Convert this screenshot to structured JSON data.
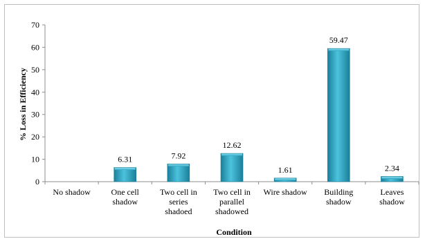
{
  "chart_data": {
    "type": "bar",
    "categories": [
      [
        "No shadow"
      ],
      [
        "One cell",
        "shadow"
      ],
      [
        "Two cell in",
        "series",
        "shadoed"
      ],
      [
        "Two cell in",
        "parallel",
        "shadowed"
      ],
      [
        "Wire shadow"
      ],
      [
        "Building",
        "shadow"
      ],
      [
        "Leaves",
        "shadow"
      ]
    ],
    "values": [
      0,
      6.31,
      7.92,
      12.62,
      1.61,
      59.47,
      2.34
    ],
    "data_labels": [
      "",
      "6.31",
      "7.92",
      "12.62",
      "1.61",
      "59.47",
      "2.34"
    ],
    "title": "",
    "xlabel": "Condition",
    "ylabel": "% Loss in Efficiency",
    "ylim": [
      0,
      70
    ],
    "yticks": [
      "0",
      "10",
      "20",
      "30",
      "40",
      "50",
      "60",
      "70"
    ],
    "grid": false,
    "legend": "none",
    "colors": {
      "bar": "#31a9c6",
      "bar_dark": "#1b7f99",
      "bar_light": "#6fd0e6",
      "axis": "#8c8c8c"
    }
  }
}
